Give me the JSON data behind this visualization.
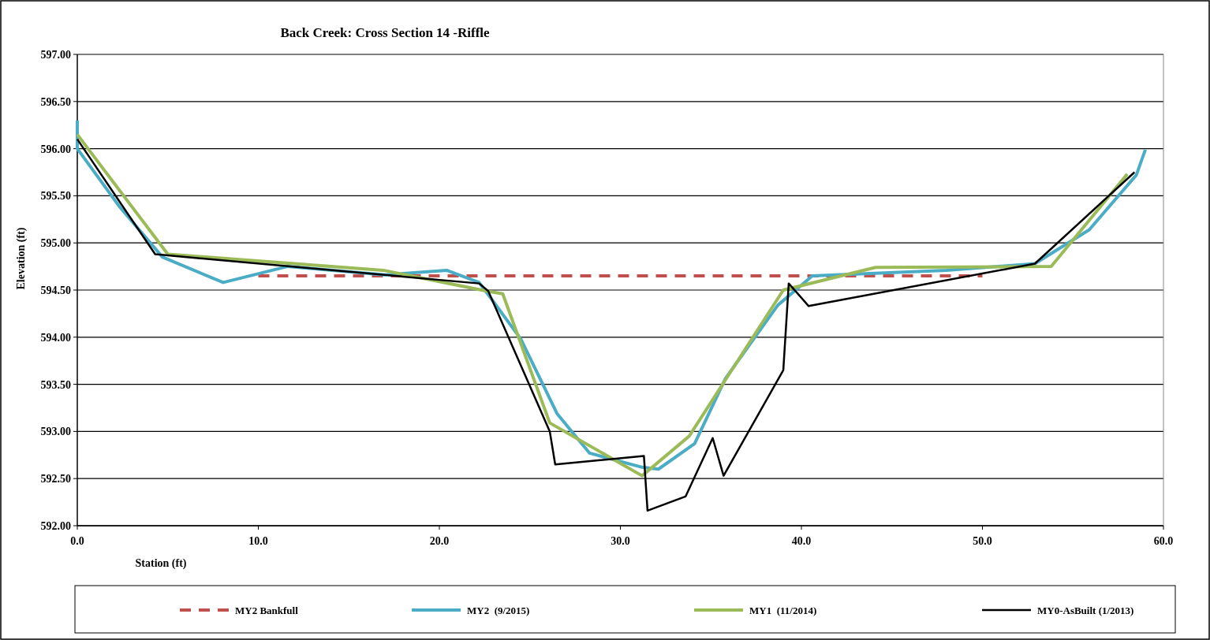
{
  "chart_data": {
    "type": "line",
    "title": "Back Creek: Cross Section 14 -Riffle",
    "xlabel": "Station (ft)",
    "ylabel": "Elevation (ft)",
    "xlim": [
      0,
      60
    ],
    "xticks": [
      {
        "value": 0,
        "label": "0.0"
      },
      {
        "value": 10,
        "label": "10.0"
      },
      {
        "value": 20,
        "label": "20.0"
      },
      {
        "value": 30,
        "label": "30.0"
      },
      {
        "value": 40,
        "label": "40.0"
      },
      {
        "value": 50,
        "label": "50.0"
      },
      {
        "value": 60,
        "label": "60.0"
      }
    ],
    "ylim": [
      592,
      597
    ],
    "yticks": [
      {
        "value": 592,
        "label": "592.00"
      },
      {
        "value": 592.5,
        "label": "592.50"
      },
      {
        "value": 593,
        "label": "593.00"
      },
      {
        "value": 593.5,
        "label": "593.50"
      },
      {
        "value": 594,
        "label": "594.00"
      },
      {
        "value": 594.5,
        "label": "594.50"
      },
      {
        "value": 595,
        "label": "595.00"
      },
      {
        "value": 595.5,
        "label": "595.50"
      },
      {
        "value": 596,
        "label": "596.00"
      },
      {
        "value": 596.5,
        "label": "596.50"
      },
      {
        "value": 597,
        "label": "597.00"
      }
    ],
    "grid": "y",
    "legend": "bottom",
    "series": [
      {
        "name": "MY2 Bankfull",
        "color": "#c0504d",
        "line_style": "dashed",
        "x": [
          10,
          50
        ],
        "values": [
          594.65,
          594.65
        ]
      },
      {
        "name": "MY2  (9/2015)",
        "color": "#4bacc6",
        "line_style": "solid",
        "x": [
          0,
          0,
          2.35,
          4.7,
          8.06,
          11.6,
          17,
          20.4,
          22.2,
          22.9,
          24.5,
          26.5,
          28.3,
          31.2,
          32.1,
          34.1,
          35.8,
          38.7,
          40.6,
          48,
          52.9,
          55.9,
          58.5,
          59
        ],
        "values": [
          596.3,
          596.0,
          595.38,
          594.85,
          594.58,
          594.75,
          594.66,
          594.71,
          594.58,
          594.4,
          593.98,
          593.19,
          592.77,
          592.62,
          592.6,
          592.87,
          593.56,
          594.34,
          594.65,
          594.71,
          594.78,
          595.14,
          595.72,
          595.99
        ]
      },
      {
        "name": "MY1  (11/2014)",
        "color": "#9bbb59",
        "line_style": "solid",
        "x": [
          0,
          5,
          16.9,
          22.6,
          23.5,
          26.1,
          31.2,
          33.8,
          39,
          44.1,
          53.8,
          58
        ],
        "values": [
          596.15,
          594.88,
          594.71,
          594.49,
          594.46,
          593.09,
          592.53,
          592.95,
          594.5,
          594.74,
          594.75,
          595.73
        ]
      },
      {
        "name": "MY0-AsBuilt (1/2013)",
        "color": "#000000",
        "line_style": "solid",
        "x": [
          0,
          4.3,
          22.2,
          22.7,
          26.1,
          26.4,
          31.3,
          31.5,
          33.6,
          35.1,
          35.7,
          39,
          39.3,
          40.4,
          52.9,
          58.4
        ],
        "values": [
          596.1,
          594.88,
          594.57,
          594.49,
          593.0,
          592.65,
          592.74,
          592.16,
          592.31,
          592.93,
          592.53,
          593.65,
          594.57,
          594.33,
          594.78,
          595.75
        ]
      }
    ]
  }
}
